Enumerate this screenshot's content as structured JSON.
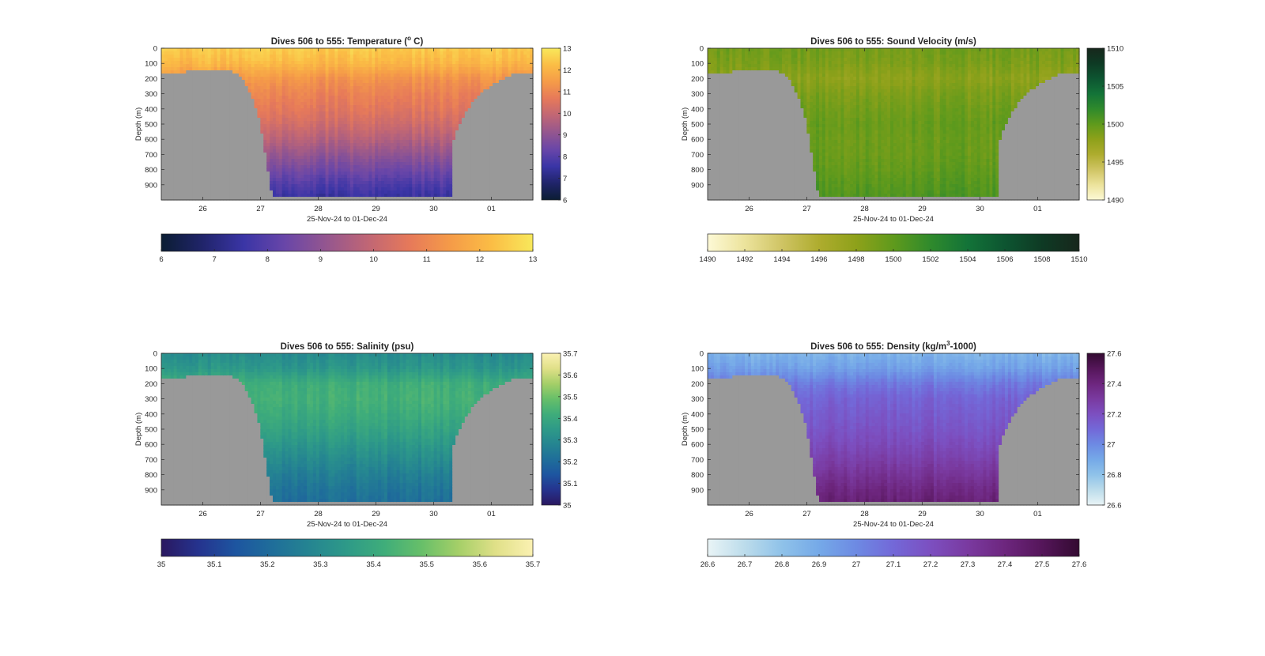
{
  "figure": {
    "background": "#ffffff",
    "land_color": "#999999"
  },
  "chart_data": [
    {
      "type": "heatmap",
      "variable": "temperature",
      "title": "Dives 506 to 555: Temperature (",
      "title_suffix": " C)",
      "title_superscript": "o",
      "xlabel": "25-Nov-24 to 01-Dec-24",
      "ylabel": "Depth (m)",
      "x_ticks": [
        "26",
        "27",
        "28",
        "29",
        "30",
        "01"
      ],
      "y_ticks": [
        "0",
        "100",
        "200",
        "300",
        "400",
        "500",
        "600",
        "700",
        "800",
        "900"
      ],
      "ylim": [
        0,
        1000
      ],
      "xlim": [
        25.28,
        31.72
      ],
      "grid": false,
      "colorbar_vertical": {
        "ticks": [
          "6",
          "7",
          "8",
          "9",
          "10",
          "11",
          "12",
          "13"
        ],
        "range": [
          6,
          13
        ]
      },
      "colorbar_horizontal": {
        "ticks": [
          "6",
          "7",
          "8",
          "9",
          "10",
          "11",
          "12",
          "13"
        ],
        "range": [
          6,
          13
        ]
      },
      "colormap": [
        "#0b1d33",
        "#20246a",
        "#3a35a6",
        "#6946a8",
        "#94568f",
        "#c06675",
        "#e6795a",
        "#f59b48",
        "#fbbd45",
        "#f8e85b"
      ],
      "profile": [
        {
          "depth": 0,
          "value": 12.5
        },
        {
          "depth": 100,
          "value": 12.1
        },
        {
          "depth": 200,
          "value": 11.3
        },
        {
          "depth": 300,
          "value": 10.9
        },
        {
          "depth": 400,
          "value": 10.6
        },
        {
          "depth": 500,
          "value": 10.2
        },
        {
          "depth": 600,
          "value": 9.7
        },
        {
          "depth": 700,
          "value": 9.1
        },
        {
          "depth": 800,
          "value": 8.5
        },
        {
          "depth": 900,
          "value": 7.9
        },
        {
          "depth": 1000,
          "value": 7.4
        }
      ]
    },
    {
      "type": "heatmap",
      "variable": "sound_velocity",
      "title": "Dives 506 to 555: Sound Velocity (m/s)",
      "xlabel": "25-Nov-24 to 01-Dec-24",
      "ylabel": "Depth (m)",
      "x_ticks": [
        "26",
        "27",
        "28",
        "29",
        "30",
        "01"
      ],
      "y_ticks": [
        "0",
        "100",
        "200",
        "300",
        "400",
        "500",
        "600",
        "700",
        "800",
        "900"
      ],
      "ylim": [
        0,
        1000
      ],
      "xlim": [
        25.28,
        31.72
      ],
      "grid": false,
      "colorbar_vertical": {
        "ticks": [
          "1490",
          "1495",
          "1500",
          "1505",
          "1510"
        ],
        "range": [
          1490,
          1510
        ]
      },
      "colorbar_horizontal": {
        "ticks": [
          "1490",
          "1492",
          "1494",
          "1496",
          "1498",
          "1500",
          "1502",
          "1504",
          "1506",
          "1508",
          "1510"
        ],
        "range": [
          1490,
          1510
        ]
      },
      "colormap": [
        "#fdf9d6",
        "#ece39c",
        "#cfc464",
        "#aeac2e",
        "#8ea11a",
        "#5f9a1c",
        "#2f8a2c",
        "#137338",
        "#0d5531",
        "#0e3a24",
        "#17271c"
      ],
      "profile": [
        {
          "depth": 0,
          "value": 1499.2
        },
        {
          "depth": 100,
          "value": 1498.8
        },
        {
          "depth": 200,
          "value": 1498.0
        },
        {
          "depth": 300,
          "value": 1498.8
        },
        {
          "depth": 400,
          "value": 1499.3
        },
        {
          "depth": 500,
          "value": 1499.7
        },
        {
          "depth": 600,
          "value": 1499.5
        },
        {
          "depth": 700,
          "value": 1499.6
        },
        {
          "depth": 800,
          "value": 1499.9
        },
        {
          "depth": 900,
          "value": 1500.4
        },
        {
          "depth": 1000,
          "value": 1500.8
        }
      ]
    },
    {
      "type": "heatmap",
      "variable": "salinity",
      "title": "Dives 506 to 555: Salinity (psu)",
      "xlabel": "25-Nov-24 to 01-Dec-24",
      "ylabel": "Depth (m)",
      "x_ticks": [
        "26",
        "27",
        "28",
        "29",
        "30",
        "01"
      ],
      "y_ticks": [
        "0",
        "100",
        "200",
        "300",
        "400",
        "500",
        "600",
        "700",
        "800",
        "900"
      ],
      "ylim": [
        0,
        1000
      ],
      "xlim": [
        25.28,
        31.72
      ],
      "grid": false,
      "colorbar_vertical": {
        "ticks": [
          "35",
          "35.1",
          "35.2",
          "35.3",
          "35.4",
          "35.5",
          "35.6",
          "35.7"
        ],
        "range": [
          35,
          35.7
        ]
      },
      "colorbar_horizontal": {
        "ticks": [
          "35",
          "35.1",
          "35.2",
          "35.3",
          "35.4",
          "35.5",
          "35.6",
          "35.7"
        ],
        "range": [
          35,
          35.7
        ]
      },
      "colormap": [
        "#2a1860",
        "#25338e",
        "#1d55a0",
        "#1f6e9a",
        "#258591",
        "#2e9a88",
        "#3fad7a",
        "#67bf69",
        "#a5cf68",
        "#e0e088",
        "#fbf1b2"
      ],
      "profile": [
        {
          "depth": 0,
          "value": 35.3
        },
        {
          "depth": 100,
          "value": 35.34
        },
        {
          "depth": 200,
          "value": 35.42
        },
        {
          "depth": 300,
          "value": 35.43
        },
        {
          "depth": 400,
          "value": 35.41
        },
        {
          "depth": 500,
          "value": 35.38
        },
        {
          "depth": 600,
          "value": 35.34
        },
        {
          "depth": 700,
          "value": 35.3
        },
        {
          "depth": 800,
          "value": 35.26
        },
        {
          "depth": 900,
          "value": 35.23
        },
        {
          "depth": 1000,
          "value": 35.21
        }
      ]
    },
    {
      "type": "heatmap",
      "variable": "density",
      "title": "Dives 506 to 555: Density (kg/m",
      "title_suffix": "-1000)",
      "title_superscript": "3",
      "xlabel": "25-Nov-24 to 01-Dec-24",
      "ylabel": "Depth (m)",
      "x_ticks": [
        "26",
        "27",
        "28",
        "29",
        "30",
        "01"
      ],
      "y_ticks": [
        "0",
        "100",
        "200",
        "300",
        "400",
        "500",
        "600",
        "700",
        "800",
        "900"
      ],
      "ylim": [
        0,
        1000
      ],
      "xlim": [
        25.28,
        31.72
      ],
      "grid": false,
      "colorbar_vertical": {
        "ticks": [
          "26.6",
          "26.8",
          "27",
          "27.2",
          "27.4",
          "27.6"
        ],
        "range": [
          26.6,
          27.6
        ]
      },
      "colorbar_horizontal": {
        "ticks": [
          "26.6",
          "26.7",
          "26.8",
          "26.9",
          "27",
          "27.1",
          "27.2",
          "27.3",
          "27.4",
          "27.5",
          "27.6"
        ],
        "range": [
          26.6,
          27.6
        ]
      },
      "colormap": [
        "#e9f4f6",
        "#bcdceb",
        "#8fc2e9",
        "#75a9e8",
        "#6d8ae3",
        "#7368d8",
        "#7c4fc0",
        "#7a3aa0",
        "#6d267e",
        "#55165a",
        "#330a31"
      ],
      "profile": [
        {
          "depth": 0,
          "value": 26.86
        },
        {
          "depth": 100,
          "value": 26.93
        },
        {
          "depth": 200,
          "value": 27.05
        },
        {
          "depth": 300,
          "value": 27.12
        },
        {
          "depth": 400,
          "value": 27.15
        },
        {
          "depth": 500,
          "value": 27.18
        },
        {
          "depth": 600,
          "value": 27.22
        },
        {
          "depth": 700,
          "value": 27.27
        },
        {
          "depth": 800,
          "value": 27.33
        },
        {
          "depth": 900,
          "value": 27.39
        },
        {
          "depth": 1000,
          "value": 27.44
        }
      ]
    }
  ],
  "bathymetry_depth_by_day": [
    {
      "day": 25.28,
      "depth": 180
    },
    {
      "day": 25.4,
      "depth": 160
    },
    {
      "day": 25.8,
      "depth": 155
    },
    {
      "day": 26.2,
      "depth": 150
    },
    {
      "day": 26.5,
      "depth": 155
    },
    {
      "day": 26.7,
      "depth": 200
    },
    {
      "day": 26.85,
      "depth": 320
    },
    {
      "day": 26.95,
      "depth": 420
    },
    {
      "day": 27.05,
      "depth": 620
    },
    {
      "day": 27.2,
      "depth": 980
    },
    {
      "day": 30.3,
      "depth": 980
    },
    {
      "day": 30.35,
      "depth": 600
    },
    {
      "day": 30.55,
      "depth": 420
    },
    {
      "day": 30.8,
      "depth": 300
    },
    {
      "day": 31.1,
      "depth": 220
    },
    {
      "day": 31.4,
      "depth": 170
    },
    {
      "day": 31.72,
      "depth": 170
    }
  ]
}
